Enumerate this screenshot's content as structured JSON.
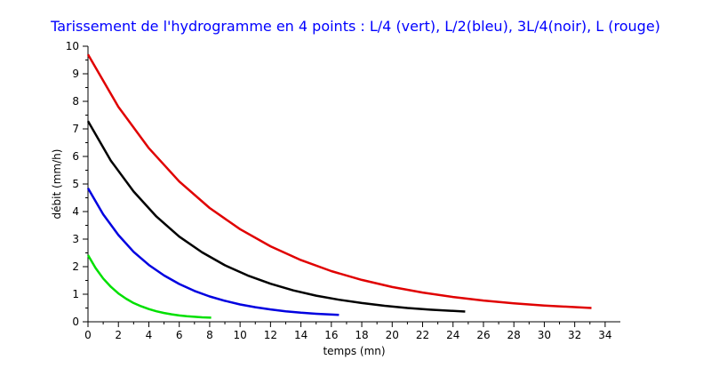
{
  "chart_data": {
    "type": "line",
    "title": "Tarissement de l'hydrogramme en 4 points : L/4 (vert), L/2(bleu), 3L/4(noir), L (rouge)",
    "xlabel": "temps (mn)",
    "ylabel": "débit (mm/h)",
    "xlim": [
      0,
      35
    ],
    "ylim": [
      0,
      10
    ],
    "x_ticks": [
      "0",
      "2",
      "4",
      "6",
      "8",
      "10",
      "12",
      "14",
      "16",
      "18",
      "20",
      "22",
      "24",
      "26",
      "28",
      "30",
      "32",
      "34"
    ],
    "y_ticks": [
      "0",
      "1",
      "2",
      "3",
      "4",
      "5",
      "6",
      "7",
      "8",
      "9",
      "10"
    ],
    "grid": false,
    "series": [
      {
        "color": "#00e000",
        "x": [
          0,
          0.5,
          1,
          1.5,
          2,
          2.5,
          3,
          3.5,
          4,
          4.5,
          5,
          5.5,
          6,
          6.5,
          7,
          7.5,
          8.1
        ],
        "y": [
          2.42,
          1.95,
          1.57,
          1.27,
          1.03,
          0.84,
          0.68,
          0.56,
          0.46,
          0.38,
          0.32,
          0.27,
          0.23,
          0.2,
          0.18,
          0.16,
          0.15
        ]
      },
      {
        "color": "#0000e0",
        "x": [
          0,
          1,
          2,
          3,
          4,
          5,
          6,
          7,
          8,
          9,
          10,
          11,
          12,
          13,
          14,
          15,
          16.5
        ],
        "y": [
          4.85,
          3.9,
          3.15,
          2.54,
          2.06,
          1.68,
          1.37,
          1.12,
          0.92,
          0.76,
          0.63,
          0.53,
          0.45,
          0.38,
          0.33,
          0.29,
          0.25
        ]
      },
      {
        "color": "#000000",
        "x": [
          0,
          1.5,
          3,
          4.5,
          6,
          7.5,
          9,
          10.5,
          12,
          13.5,
          15,
          16.5,
          18,
          19.5,
          21,
          22.5,
          24.8
        ],
        "y": [
          7.28,
          5.85,
          4.73,
          3.82,
          3.09,
          2.52,
          2.05,
          1.68,
          1.38,
          1.14,
          0.95,
          0.8,
          0.68,
          0.58,
          0.5,
          0.44,
          0.37
        ]
      },
      {
        "color": "#e00000",
        "x": [
          0,
          2,
          4,
          6,
          8,
          10,
          12,
          14,
          16,
          18,
          20,
          22,
          24,
          26,
          28,
          30,
          33.1
        ],
        "y": [
          9.7,
          7.8,
          6.3,
          5.09,
          4.13,
          3.36,
          2.74,
          2.24,
          1.84,
          1.52,
          1.26,
          1.06,
          0.9,
          0.77,
          0.67,
          0.59,
          0.5
        ]
      }
    ]
  }
}
